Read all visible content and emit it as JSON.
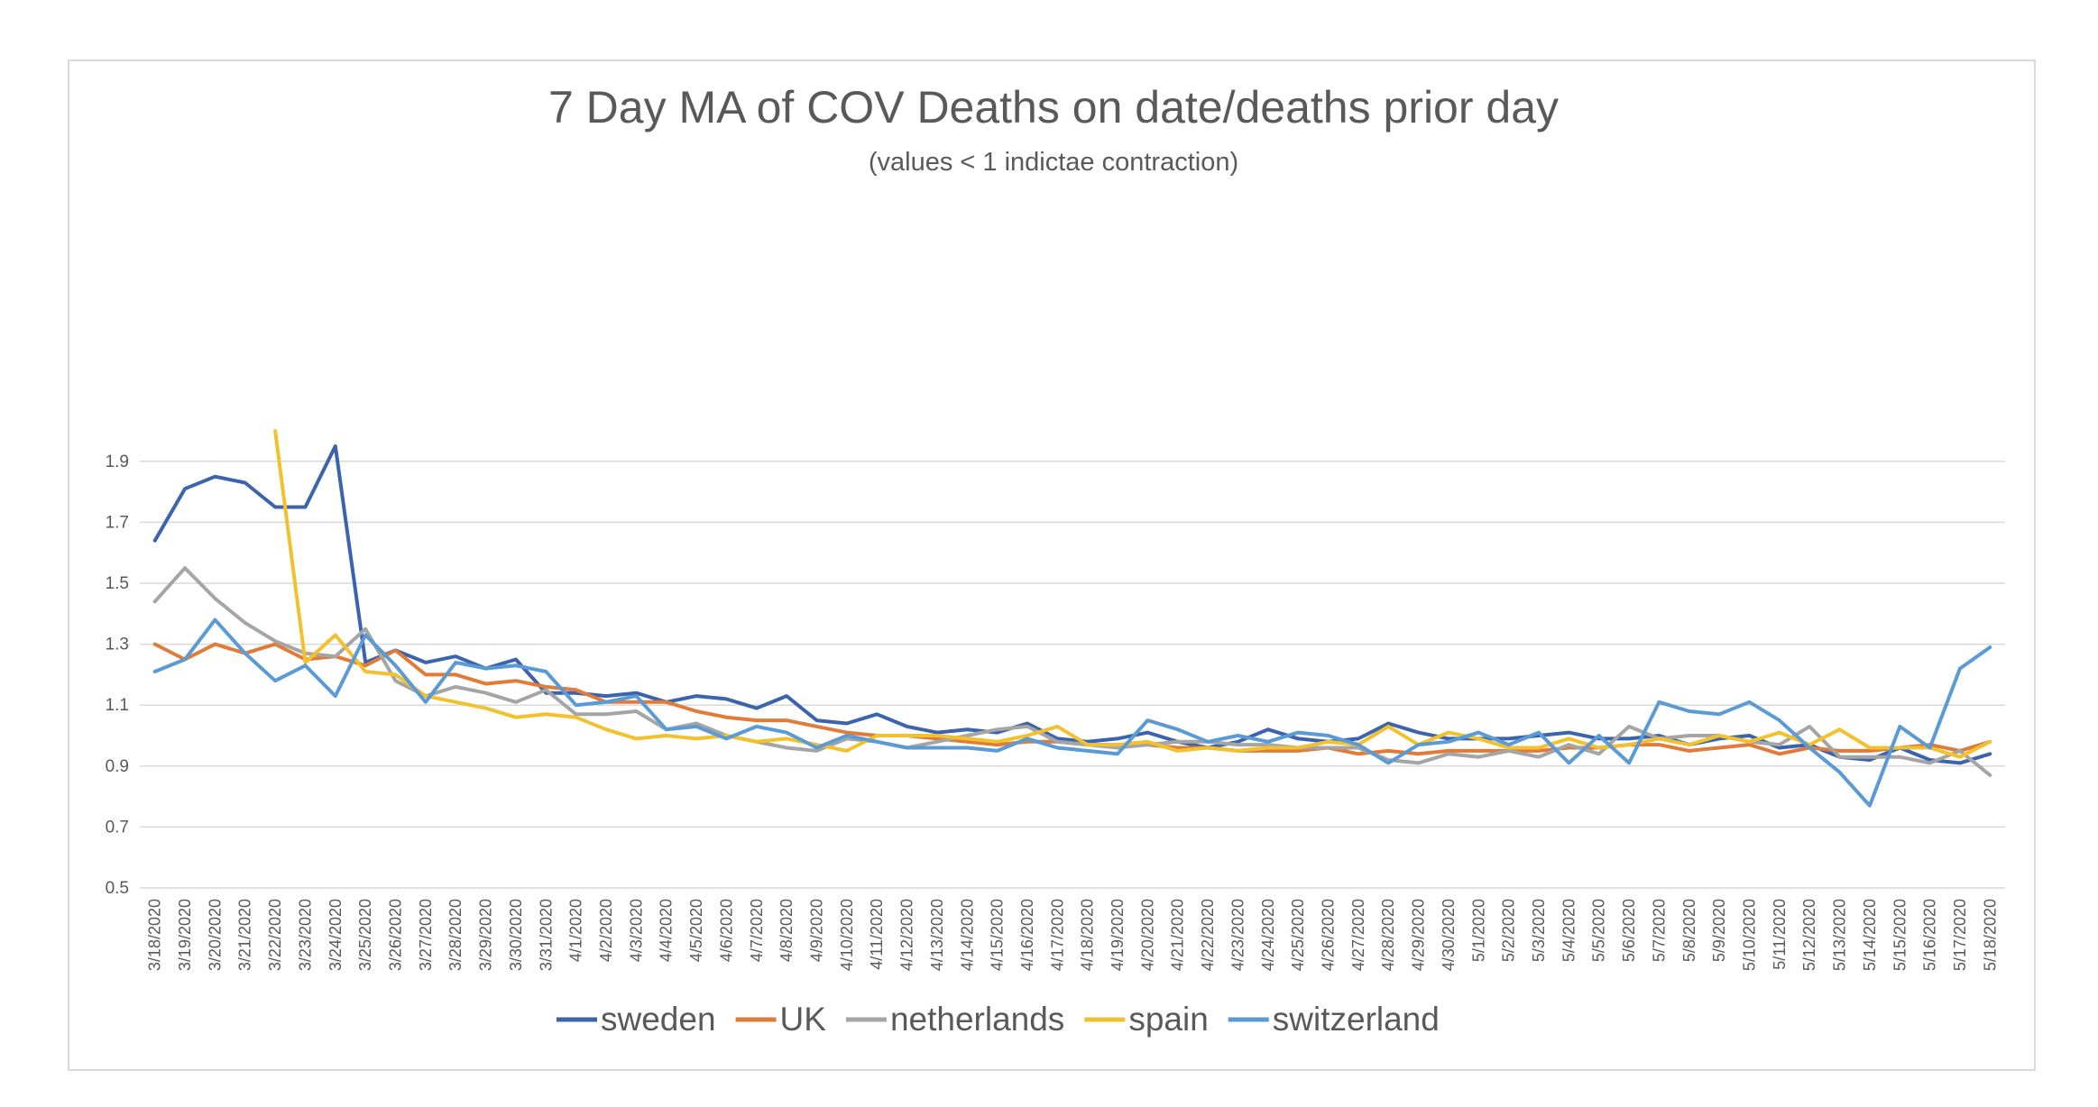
{
  "chart_data": {
    "type": "line",
    "title": "7 Day MA of COV Deaths on date/deaths prior day",
    "subtitle": "(values < 1 indictae contraction)",
    "xlabel": "",
    "ylabel": "",
    "ylim": [
      0.5,
      2.0
    ],
    "yticks": [
      "0.5",
      "0.7",
      "0.9",
      "1.1",
      "1.3",
      "1.5",
      "1.7",
      "1.9"
    ],
    "grid": true,
    "legend_position": "bottom",
    "categories": [
      "3/18/2020",
      "3/19/2020",
      "3/20/2020",
      "3/21/2020",
      "3/22/2020",
      "3/23/2020",
      "3/24/2020",
      "3/25/2020",
      "3/26/2020",
      "3/27/2020",
      "3/28/2020",
      "3/29/2020",
      "3/30/2020",
      "3/31/2020",
      "4/1/2020",
      "4/2/2020",
      "4/3/2020",
      "4/4/2020",
      "4/5/2020",
      "4/6/2020",
      "4/7/2020",
      "4/8/2020",
      "4/9/2020",
      "4/10/2020",
      "4/11/2020",
      "4/12/2020",
      "4/13/2020",
      "4/14/2020",
      "4/15/2020",
      "4/16/2020",
      "4/17/2020",
      "4/18/2020",
      "4/19/2020",
      "4/20/2020",
      "4/21/2020",
      "4/22/2020",
      "4/23/2020",
      "4/24/2020",
      "4/25/2020",
      "4/26/2020",
      "4/27/2020",
      "4/28/2020",
      "4/29/2020",
      "4/30/2020",
      "5/1/2020",
      "5/2/2020",
      "5/3/2020",
      "5/4/2020",
      "5/5/2020",
      "5/6/2020",
      "5/7/2020",
      "5/8/2020",
      "5/9/2020",
      "5/10/2020",
      "5/11/2020",
      "5/12/2020",
      "5/13/2020",
      "5/14/2020",
      "5/15/2020",
      "5/16/2020",
      "5/17/2020",
      "5/18/2020"
    ],
    "series": [
      {
        "name": "sweden",
        "color": "#3b64ad",
        "values": [
          1.64,
          1.81,
          1.85,
          1.83,
          1.75,
          1.75,
          1.95,
          1.24,
          1.28,
          1.24,
          1.26,
          1.22,
          1.25,
          1.14,
          1.14,
          1.13,
          1.14,
          1.11,
          1.13,
          1.12,
          1.09,
          1.13,
          1.05,
          1.04,
          1.07,
          1.03,
          1.01,
          1.02,
          1.01,
          1.04,
          0.99,
          0.98,
          0.99,
          1.01,
          0.98,
          0.96,
          0.98,
          1.02,
          0.99,
          0.98,
          0.99,
          1.04,
          1.01,
          0.99,
          0.99,
          0.99,
          1.0,
          1.01,
          0.99,
          0.99,
          1.0,
          0.97,
          0.99,
          1.0,
          0.96,
          0.97,
          0.93,
          0.92,
          0.96,
          0.92,
          0.91,
          0.94
        ]
      },
      {
        "name": "UK",
        "color": "#e07b39",
        "values": [
          1.3,
          1.25,
          1.3,
          1.27,
          1.3,
          1.25,
          1.26,
          1.23,
          1.28,
          1.2,
          1.2,
          1.17,
          1.18,
          1.16,
          1.15,
          1.11,
          1.11,
          1.11,
          1.08,
          1.06,
          1.05,
          1.05,
          1.03,
          1.01,
          1.0,
          1.0,
          0.99,
          0.98,
          0.97,
          0.98,
          0.98,
          0.97,
          0.97,
          0.97,
          0.96,
          0.96,
          0.95,
          0.95,
          0.95,
          0.96,
          0.94,
          0.95,
          0.94,
          0.95,
          0.95,
          0.95,
          0.95,
          0.96,
          0.96,
          0.97,
          0.97,
          0.95,
          0.96,
          0.97,
          0.94,
          0.96,
          0.95,
          0.95,
          0.96,
          0.97,
          0.95,
          0.98
        ]
      },
      {
        "name": "netherlands",
        "color": "#a5a5a5",
        "values": [
          1.44,
          1.55,
          1.45,
          1.37,
          1.31,
          1.27,
          1.26,
          1.35,
          1.18,
          1.13,
          1.16,
          1.14,
          1.11,
          1.15,
          1.07,
          1.07,
          1.08,
          1.02,
          1.04,
          1.0,
          0.98,
          0.96,
          0.95,
          0.99,
          0.98,
          0.96,
          0.98,
          1.0,
          1.02,
          1.03,
          0.98,
          0.97,
          0.96,
          0.97,
          0.98,
          0.98,
          0.97,
          0.97,
          0.96,
          0.96,
          0.96,
          0.92,
          0.91,
          0.94,
          0.93,
          0.95,
          0.93,
          0.97,
          0.94,
          1.03,
          0.99,
          1.0,
          1.0,
          0.98,
          0.97,
          1.03,
          0.93,
          0.93,
          0.93,
          0.91,
          0.95,
          0.87
        ]
      },
      {
        "name": "spain",
        "color": "#f2c12e",
        "values": [
          null,
          null,
          null,
          null,
          2.0,
          1.24,
          1.33,
          1.21,
          1.2,
          1.13,
          1.11,
          1.09,
          1.06,
          1.07,
          1.06,
          1.02,
          0.99,
          1.0,
          0.99,
          1.0,
          0.98,
          0.99,
          0.97,
          0.95,
          1.0,
          1.0,
          1.0,
          0.99,
          0.98,
          1.0,
          1.03,
          0.97,
          0.97,
          0.98,
          0.95,
          0.96,
          0.95,
          0.96,
          0.96,
          0.98,
          0.97,
          1.03,
          0.97,
          1.01,
          0.99,
          0.96,
          0.96,
          0.99,
          0.96,
          0.97,
          0.99,
          0.97,
          1.0,
          0.98,
          1.01,
          0.97,
          1.02,
          0.96,
          0.96,
          0.96,
          0.93,
          0.98
        ]
      },
      {
        "name": "switzerland",
        "color": "#5b9bd5",
        "values": [
          1.21,
          1.25,
          1.38,
          1.27,
          1.18,
          1.23,
          1.13,
          1.33,
          1.23,
          1.11,
          1.24,
          1.22,
          1.23,
          1.21,
          1.1,
          1.11,
          1.13,
          1.02,
          1.03,
          0.99,
          1.03,
          1.01,
          0.96,
          1.0,
          0.98,
          0.96,
          0.96,
          0.96,
          0.95,
          0.99,
          0.96,
          0.95,
          0.94,
          1.05,
          1.02,
          0.98,
          1.0,
          0.98,
          1.01,
          1.0,
          0.97,
          0.91,
          0.97,
          0.98,
          1.01,
          0.97,
          1.01,
          0.91,
          1.0,
          0.91,
          1.11,
          1.08,
          1.07,
          1.11,
          1.05,
          0.96,
          0.88,
          0.77,
          1.03,
          0.96,
          1.22,
          1.29
        ]
      }
    ]
  }
}
